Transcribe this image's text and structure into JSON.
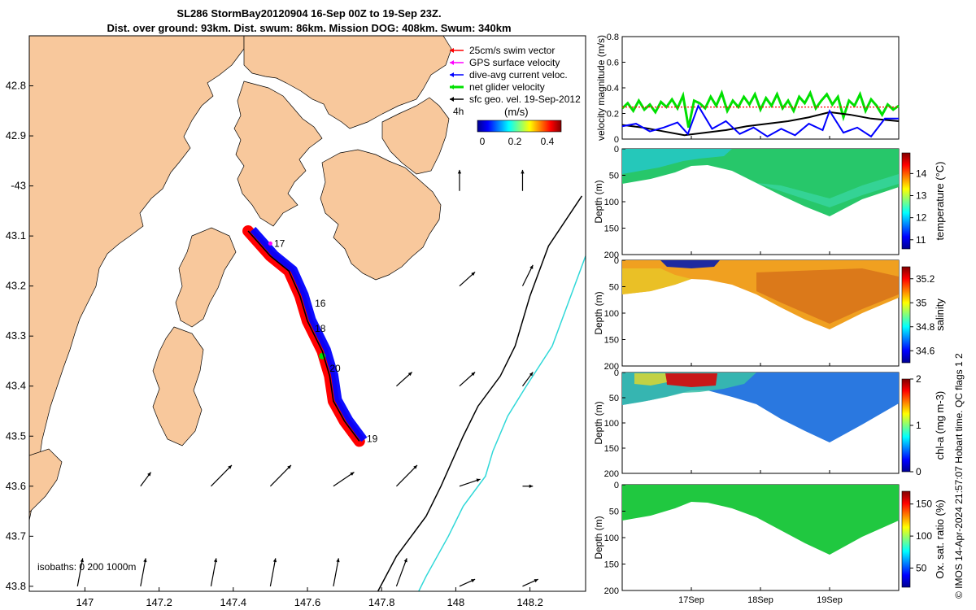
{
  "title_line1": "SL286 StormBay20120904 16-Sep 00Z to 19-Sep 23Z.",
  "title_line2": "Dist. over ground: 93km. Dist. swum: 86km. Mission DOG: 408km. Swum: 340km",
  "credit": "© IMOS 14-Apr-2024 21:57:07 Hobart time. QC flags 1  2",
  "isobaths_label": "isobaths: 0   200  1000m",
  "colors": {
    "land": "#f8c89c",
    "swim_vector": "#ff0000",
    "gps_velocity": "#ff00ff",
    "dive_avg": "#0000ff",
    "net_glider": "#00e000",
    "sfc_geo": "#000000",
    "isobath_200": "#000000",
    "isobath_1000": "#30d8d8"
  },
  "chart_data": [
    {
      "type": "map",
      "xlim": [
        146.85,
        148.35
      ],
      "ylim": [
        43.81,
        42.7
      ],
      "x_ticks": [
        147,
        147.2,
        147.4,
        147.6,
        147.8,
        148,
        148.2
      ],
      "x_tick_labels": [
        "147",
        "147.2",
        "147.4",
        "147.6",
        "147.8",
        "148",
        "148.2"
      ],
      "y_ticks": [
        42.8,
        42.9,
        43.0,
        43.1,
        43.2,
        43.3,
        43.4,
        43.5,
        43.6,
        43.7,
        43.8
      ],
      "y_tick_labels": [
        "42.8",
        "42.9",
        "-43",
        "43.1",
        "43.2",
        "43.3",
        "43.4",
        "43.5",
        "43.6",
        "43.7",
        "43.8"
      ],
      "legend": [
        {
          "label": "25cm/s swim vector",
          "color": "#ff0000"
        },
        {
          "label": "GPS surface velocity",
          "color": "#ff00ff"
        },
        {
          "label": "dive-avg current veloc.",
          "color": "#0000ff"
        },
        {
          "label": "net glider velocity",
          "color": "#00e000"
        },
        {
          "label": "sfc geo. vel. 19-Sep-2012",
          "color": "#000000"
        }
      ],
      "legend_extra": "4h",
      "colorbar": {
        "label": "(m/s)",
        "ticks": [
          "0",
          "0.2",
          "0.4"
        ],
        "range": [
          0,
          0.5
        ]
      },
      "track": [
        {
          "lon": 147.44,
          "lat": 43.09
        },
        {
          "lon": 147.5,
          "lat": 43.14
        },
        {
          "lon": 147.55,
          "lat": 43.17
        },
        {
          "lon": 147.58,
          "lat": 43.22
        },
        {
          "lon": 147.6,
          "lat": 43.27
        },
        {
          "lon": 147.64,
          "lat": 43.33
        },
        {
          "lon": 147.66,
          "lat": 43.38
        },
        {
          "lon": 147.67,
          "lat": 43.43
        },
        {
          "lon": 147.7,
          "lat": 43.47
        },
        {
          "lon": 147.74,
          "lat": 43.51
        }
      ],
      "day_labels": [
        {
          "text": "17",
          "lon": 147.51,
          "lat": 43.115
        },
        {
          "text": "16",
          "lon": 147.62,
          "lat": 43.235
        },
        {
          "text": "18",
          "lon": 147.62,
          "lat": 43.285
        },
        {
          "text": "20",
          "lon": 147.66,
          "lat": 43.365
        },
        {
          "text": "19",
          "lon": 147.76,
          "lat": 43.505
        }
      ],
      "isobath_200": [
        [
          148.34,
          43.02
        ],
        [
          148.25,
          43.12
        ],
        [
          148.2,
          43.22
        ],
        [
          148.16,
          43.32
        ],
        [
          148.12,
          43.38
        ],
        [
          148.06,
          43.44
        ],
        [
          148.02,
          43.5
        ],
        [
          147.96,
          43.6
        ],
        [
          147.92,
          43.66
        ],
        [
          147.88,
          43.7
        ],
        [
          147.84,
          43.74
        ],
        [
          147.79,
          43.81
        ]
      ],
      "isobath_1000": [
        [
          148.35,
          43.14
        ],
        [
          148.31,
          43.22
        ],
        [
          148.26,
          43.32
        ],
        [
          148.19,
          43.4
        ],
        [
          148.14,
          43.46
        ],
        [
          148.1,
          43.53
        ],
        [
          148.08,
          43.58
        ],
        [
          148.02,
          43.64
        ],
        [
          147.98,
          43.7
        ],
        [
          147.95,
          43.74
        ],
        [
          147.92,
          43.78
        ],
        [
          147.9,
          43.81
        ]
      ],
      "geo_arrows": [
        {
          "lon": 148.01,
          "lat": 43.01,
          "dlon": 0.0,
          "dlat": -0.03
        },
        {
          "lon": 148.18,
          "lat": 43.01,
          "dlon": 0.0,
          "dlat": -0.03
        },
        {
          "lon": 148.01,
          "lat": 43.2,
          "dlon": 0.03,
          "dlat": -0.02
        },
        {
          "lon": 148.18,
          "lat": 43.2,
          "dlon": 0.02,
          "dlat": -0.03
        },
        {
          "lon": 147.84,
          "lat": 43.4,
          "dlon": 0.03,
          "dlat": -0.02
        },
        {
          "lon": 148.01,
          "lat": 43.4,
          "dlon": 0.03,
          "dlat": -0.02
        },
        {
          "lon": 148.18,
          "lat": 43.4,
          "dlon": 0.02,
          "dlat": -0.02
        },
        {
          "lon": 147.15,
          "lat": 43.6,
          "dlon": 0.02,
          "dlat": -0.02
        },
        {
          "lon": 147.34,
          "lat": 43.6,
          "dlon": 0.04,
          "dlat": -0.03
        },
        {
          "lon": 147.5,
          "lat": 43.6,
          "dlon": 0.04,
          "dlat": -0.03
        },
        {
          "lon": 147.67,
          "lat": 43.6,
          "dlon": 0.04,
          "dlat": -0.02
        },
        {
          "lon": 147.84,
          "lat": 43.6,
          "dlon": 0.04,
          "dlat": -0.03
        },
        {
          "lon": 148.01,
          "lat": 43.6,
          "dlon": 0.04,
          "dlat": -0.01
        },
        {
          "lon": 148.18,
          "lat": 43.6,
          "dlon": 0.02,
          "dlat": 0.0
        },
        {
          "lon": 146.98,
          "lat": 43.8,
          "dlon": 0.01,
          "dlat": -0.04
        },
        {
          "lon": 147.15,
          "lat": 43.8,
          "dlon": 0.01,
          "dlat": -0.04
        },
        {
          "lon": 147.34,
          "lat": 43.8,
          "dlon": 0.01,
          "dlat": -0.04
        },
        {
          "lon": 147.5,
          "lat": 43.8,
          "dlon": 0.01,
          "dlat": -0.04
        },
        {
          "lon": 147.67,
          "lat": 43.8,
          "dlon": 0.01,
          "dlat": -0.04
        },
        {
          "lon": 147.84,
          "lat": 43.8,
          "dlon": 0.02,
          "dlat": -0.04
        },
        {
          "lon": 148.01,
          "lat": 43.8,
          "dlon": 0.03,
          "dlat": -0.01
        },
        {
          "lon": 148.18,
          "lat": 43.8,
          "dlon": 0.03,
          "dlat": -0.01
        }
      ]
    },
    {
      "type": "line",
      "ylabel": "velocity magnitude (m/s)",
      "ylim": [
        0,
        0.8
      ],
      "y_ticks": [
        0,
        0.2,
        0.4,
        0.6,
        0.8
      ],
      "y_tick_labels": [
        "0",
        "0.2",
        "0.4",
        "0.6",
        "0.8"
      ],
      "xlim": [
        16.0,
        20.0
      ],
      "x_ticks": [
        17,
        18,
        19
      ],
      "x_tick_labels": [
        "17Sep",
        "18Sep",
        "19Sep"
      ],
      "series": [
        {
          "color": "#00e000",
          "x": [
            16.0,
            16.08,
            16.16,
            16.24,
            16.32,
            16.4,
            16.48,
            16.56,
            16.64,
            16.72,
            16.8,
            16.88,
            16.96,
            17.04,
            17.12,
            17.2,
            17.28,
            17.36,
            17.44,
            17.52,
            17.6,
            17.68,
            17.76,
            17.84,
            17.92,
            18.0,
            18.08,
            18.16,
            18.24,
            18.32,
            18.4,
            18.48,
            18.56,
            18.64,
            18.72,
            18.8,
            18.88,
            18.96,
            19.04,
            19.12,
            19.2,
            19.28,
            19.36,
            19.44,
            19.52,
            19.6,
            19.68,
            19.76,
            19.84,
            19.92,
            20.0
          ],
          "y": [
            0.24,
            0.28,
            0.22,
            0.3,
            0.23,
            0.27,
            0.21,
            0.29,
            0.25,
            0.31,
            0.24,
            0.34,
            0.09,
            0.3,
            0.28,
            0.24,
            0.33,
            0.26,
            0.36,
            0.22,
            0.3,
            0.25,
            0.33,
            0.27,
            0.35,
            0.23,
            0.32,
            0.26,
            0.35,
            0.24,
            0.3,
            0.22,
            0.33,
            0.28,
            0.36,
            0.24,
            0.3,
            0.35,
            0.27,
            0.33,
            0.17,
            0.3,
            0.26,
            0.35,
            0.22,
            0.31,
            0.26,
            0.19,
            0.27,
            0.23,
            0.26
          ]
        },
        {
          "color": "#ff0000",
          "x": [
            16.0,
            17.0,
            18.0,
            19.0,
            20.0
          ],
          "y": [
            0.25,
            0.25,
            0.25,
            0.25,
            0.25
          ]
        },
        {
          "color": "#000000",
          "x": [
            16.0,
            16.3,
            16.6,
            16.9,
            17.2,
            17.5,
            17.8,
            18.1,
            18.4,
            18.7,
            19.0,
            19.3,
            19.6,
            20.0
          ],
          "y": [
            0.11,
            0.09,
            0.06,
            0.03,
            0.05,
            0.07,
            0.1,
            0.12,
            0.14,
            0.17,
            0.21,
            0.19,
            0.16,
            0.14
          ]
        },
        {
          "color": "#0000ff",
          "x": [
            16.0,
            16.2,
            16.4,
            16.6,
            16.8,
            16.95,
            17.1,
            17.3,
            17.5,
            17.7,
            17.9,
            18.1,
            18.3,
            18.5,
            18.7,
            18.9,
            19.0,
            19.2,
            19.4,
            19.6,
            19.8,
            20.0
          ],
          "y": [
            0.1,
            0.12,
            0.06,
            0.09,
            0.13,
            0.04,
            0.26,
            0.08,
            0.14,
            0.04,
            0.09,
            0.02,
            0.08,
            0.03,
            0.12,
            0.07,
            0.22,
            0.05,
            0.09,
            0.02,
            0.16,
            0.16
          ]
        }
      ]
    },
    {
      "type": "heatmap",
      "ylabel": "Depth (m)",
      "colorbar_label": "temperature (°C)",
      "colorbar_ticks": [
        "11",
        "12",
        "13",
        "14"
      ],
      "clim": [
        10.3,
        14.8
      ],
      "ylim": [
        200,
        0
      ],
      "y_tick_labels": [
        "0",
        "50",
        "100",
        "150",
        "200"
      ]
    },
    {
      "type": "heatmap",
      "ylabel": "Depth (m)",
      "colorbar_label": "salinity",
      "colorbar_ticks": [
        "34.6",
        "34.8",
        "35",
        "35.2"
      ],
      "clim": [
        34.5,
        35.3
      ],
      "ylim": [
        200,
        0
      ],
      "y_tick_labels": [
        "0",
        "50",
        "100",
        "150",
        "200"
      ]
    },
    {
      "type": "heatmap",
      "ylabel": "Depth (m)",
      "colorbar_label": "chl-a (mg m-3)",
      "colorbar_ticks": [
        "0",
        "1",
        "2"
      ],
      "clim": [
        0,
        2
      ],
      "ylim": [
        200,
        0
      ],
      "y_tick_labels": [
        "0",
        "50",
        "100",
        "150",
        "200"
      ]
    },
    {
      "type": "heatmap",
      "ylabel": "Depth (m)",
      "colorbar_label": "Ox. sat. ratio (%)",
      "colorbar_ticks": [
        "50",
        "100",
        "150"
      ],
      "clim": [
        20,
        170
      ],
      "ylim": [
        200,
        0
      ],
      "y_tick_labels": [
        "0",
        "50",
        "100",
        "150",
        "200"
      ],
      "x_tick_labels": [
        "17Sep",
        "18Sep",
        "19Sep"
      ]
    }
  ]
}
